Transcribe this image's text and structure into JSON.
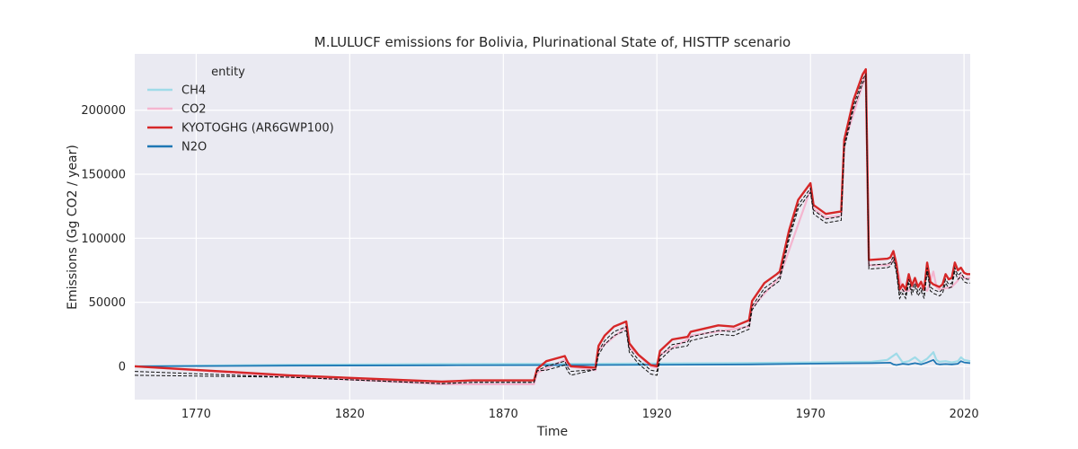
{
  "chart_data": {
    "type": "line",
    "title": "M.LULUCF emissions for Bolivia, Plurinational State of, HISTTP scenario",
    "xlabel": "Time",
    "ylabel": "Emissions (Gg CO2 / year)",
    "xlim": [
      1750,
      2022
    ],
    "ylim": [
      -26000,
      244000
    ],
    "xticks": [
      1770,
      1820,
      1870,
      1920,
      1970,
      2020
    ],
    "yticks": [
      0,
      50000,
      100000,
      150000,
      200000
    ],
    "grid": true,
    "legend": {
      "title": "entity",
      "position": "top-left"
    },
    "series": [
      {
        "name": "CH4",
        "color": "#9fdbe8",
        "x": [
          1750,
          1800,
          1850,
          1900,
          1950,
          1990,
          1995,
          1998,
          2000,
          2002,
          2004,
          2006,
          2008,
          2010,
          2011,
          2012,
          2014,
          2016,
          2018,
          2019,
          2020,
          2022
        ],
        "y": [
          0,
          1200,
          1800,
          2000,
          2600,
          3500,
          5000,
          10000,
          3000,
          4000,
          7000,
          3000,
          6000,
          11000,
          5000,
          3500,
          4000,
          3000,
          4000,
          7000,
          5000,
          4000
        ]
      },
      {
        "name": "CO2",
        "color": "#f4b5cf",
        "x": [
          1750,
          1800,
          1850,
          1880,
          1881,
          1890,
          1891,
          1900,
          1901,
          1910,
          1911,
          1918,
          1920,
          1921,
          1930,
          1931,
          1950,
          1951,
          1960,
          1970,
          1971,
          1975,
          1980,
          1981,
          1988,
          1989,
          1990,
          1995,
          1996,
          1997,
          1998,
          2000,
          2002,
          2004,
          2006,
          2008,
          2010,
          2011,
          2012,
          2014,
          2016,
          2018,
          2019,
          2020,
          2022
        ],
        "y": [
          0,
          -8000,
          -14000,
          -14000,
          -5000,
          5000,
          0,
          -3000,
          13000,
          31000,
          15000,
          0,
          -1000,
          9000,
          21000,
          24000,
          31000,
          46000,
          70000,
          138000,
          123000,
          116000,
          118000,
          174000,
          228000,
          79000,
          79000,
          79000,
          80000,
          84000,
          79000,
          59000,
          59000,
          65000,
          62000,
          59000,
          74000,
          62000,
          60000,
          61000,
          62000,
          67000,
          72000,
          69000,
          69000
        ]
      },
      {
        "name": "KYOTOGHG (AR6GWP100)",
        "color": "#d62728",
        "x": [
          1750,
          1800,
          1850,
          1860,
          1880,
          1881,
          1884,
          1890,
          1891,
          1892,
          1900,
          1901,
          1903,
          1906,
          1910,
          1911,
          1914,
          1918,
          1920,
          1921,
          1925,
          1930,
          1931,
          1940,
          1945,
          1950,
          1951,
          1955,
          1959,
          1960,
          1963,
          1966,
          1970,
          1971,
          1975,
          1980,
          1981,
          1984,
          1987,
          1988,
          1989,
          1995,
          1996,
          1997,
          1998,
          1999,
          2000,
          2001,
          2002,
          2003,
          2004,
          2005,
          2006,
          2007,
          2008,
          2009,
          2010,
          2011,
          2012,
          2013,
          2014,
          2015,
          2016,
          2017,
          2018,
          2019,
          2020,
          2021,
          2022
        ],
        "y": [
          0,
          -7000,
          -12000,
          -11000,
          -11000,
          -2000,
          4000,
          8000,
          3000,
          0,
          -1000,
          16000,
          24000,
          31000,
          35000,
          18000,
          9000,
          1000,
          0,
          12000,
          21000,
          23000,
          27000,
          32000,
          31000,
          36000,
          51000,
          65000,
          72000,
          74000,
          106000,
          130000,
          143000,
          126000,
          119000,
          121000,
          177000,
          208000,
          228000,
          232000,
          83000,
          84000,
          85000,
          90000,
          80000,
          60000,
          64000,
          60000,
          72000,
          63000,
          69000,
          62000,
          66000,
          60000,
          81000,
          66000,
          64000,
          63000,
          62000,
          64000,
          72000,
          68000,
          69000,
          81000,
          75000,
          77000,
          73000,
          72000,
          72000
        ]
      },
      {
        "name": "N2O",
        "color": "#1f77b4",
        "x": [
          1750,
          1800,
          1850,
          1900,
          1950,
          1980,
          1990,
          1996,
          1997,
          1998,
          2000,
          2002,
          2004,
          2006,
          2008,
          2010,
          2011,
          2012,
          2014,
          2016,
          2018,
          2019,
          2020,
          2022
        ],
        "y": [
          0,
          500,
          800,
          1000,
          1500,
          2300,
          2500,
          2800,
          1500,
          1000,
          2000,
          1500,
          2500,
          1500,
          3000,
          5000,
          2000,
          1500,
          1800,
          1500,
          2000,
          4000,
          3000,
          2500
        ]
      }
    ]
  }
}
